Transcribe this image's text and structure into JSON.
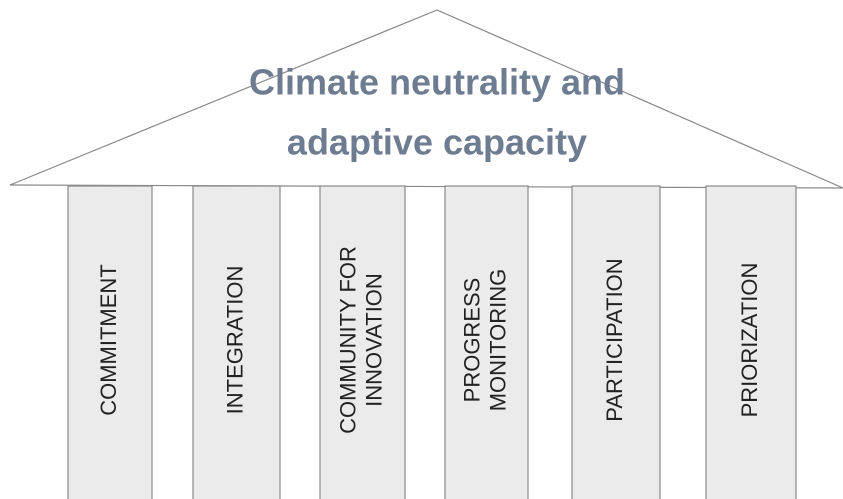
{
  "title": {
    "lines": [
      "Climate neutrality and",
      "adaptive capacity"
    ]
  },
  "pillars": [
    {
      "lines": [
        "COMMITMENT"
      ]
    },
    {
      "lines": [
        "INTEGRATION"
      ]
    },
    {
      "lines": [
        "COMMUNITY FOR",
        "INNOVATION"
      ]
    },
    {
      "lines": [
        "PROGRESS",
        "MONITORING"
      ]
    },
    {
      "lines": [
        "PARTICIPATION"
      ]
    },
    {
      "lines": [
        "PRIORIZATION"
      ]
    }
  ]
}
